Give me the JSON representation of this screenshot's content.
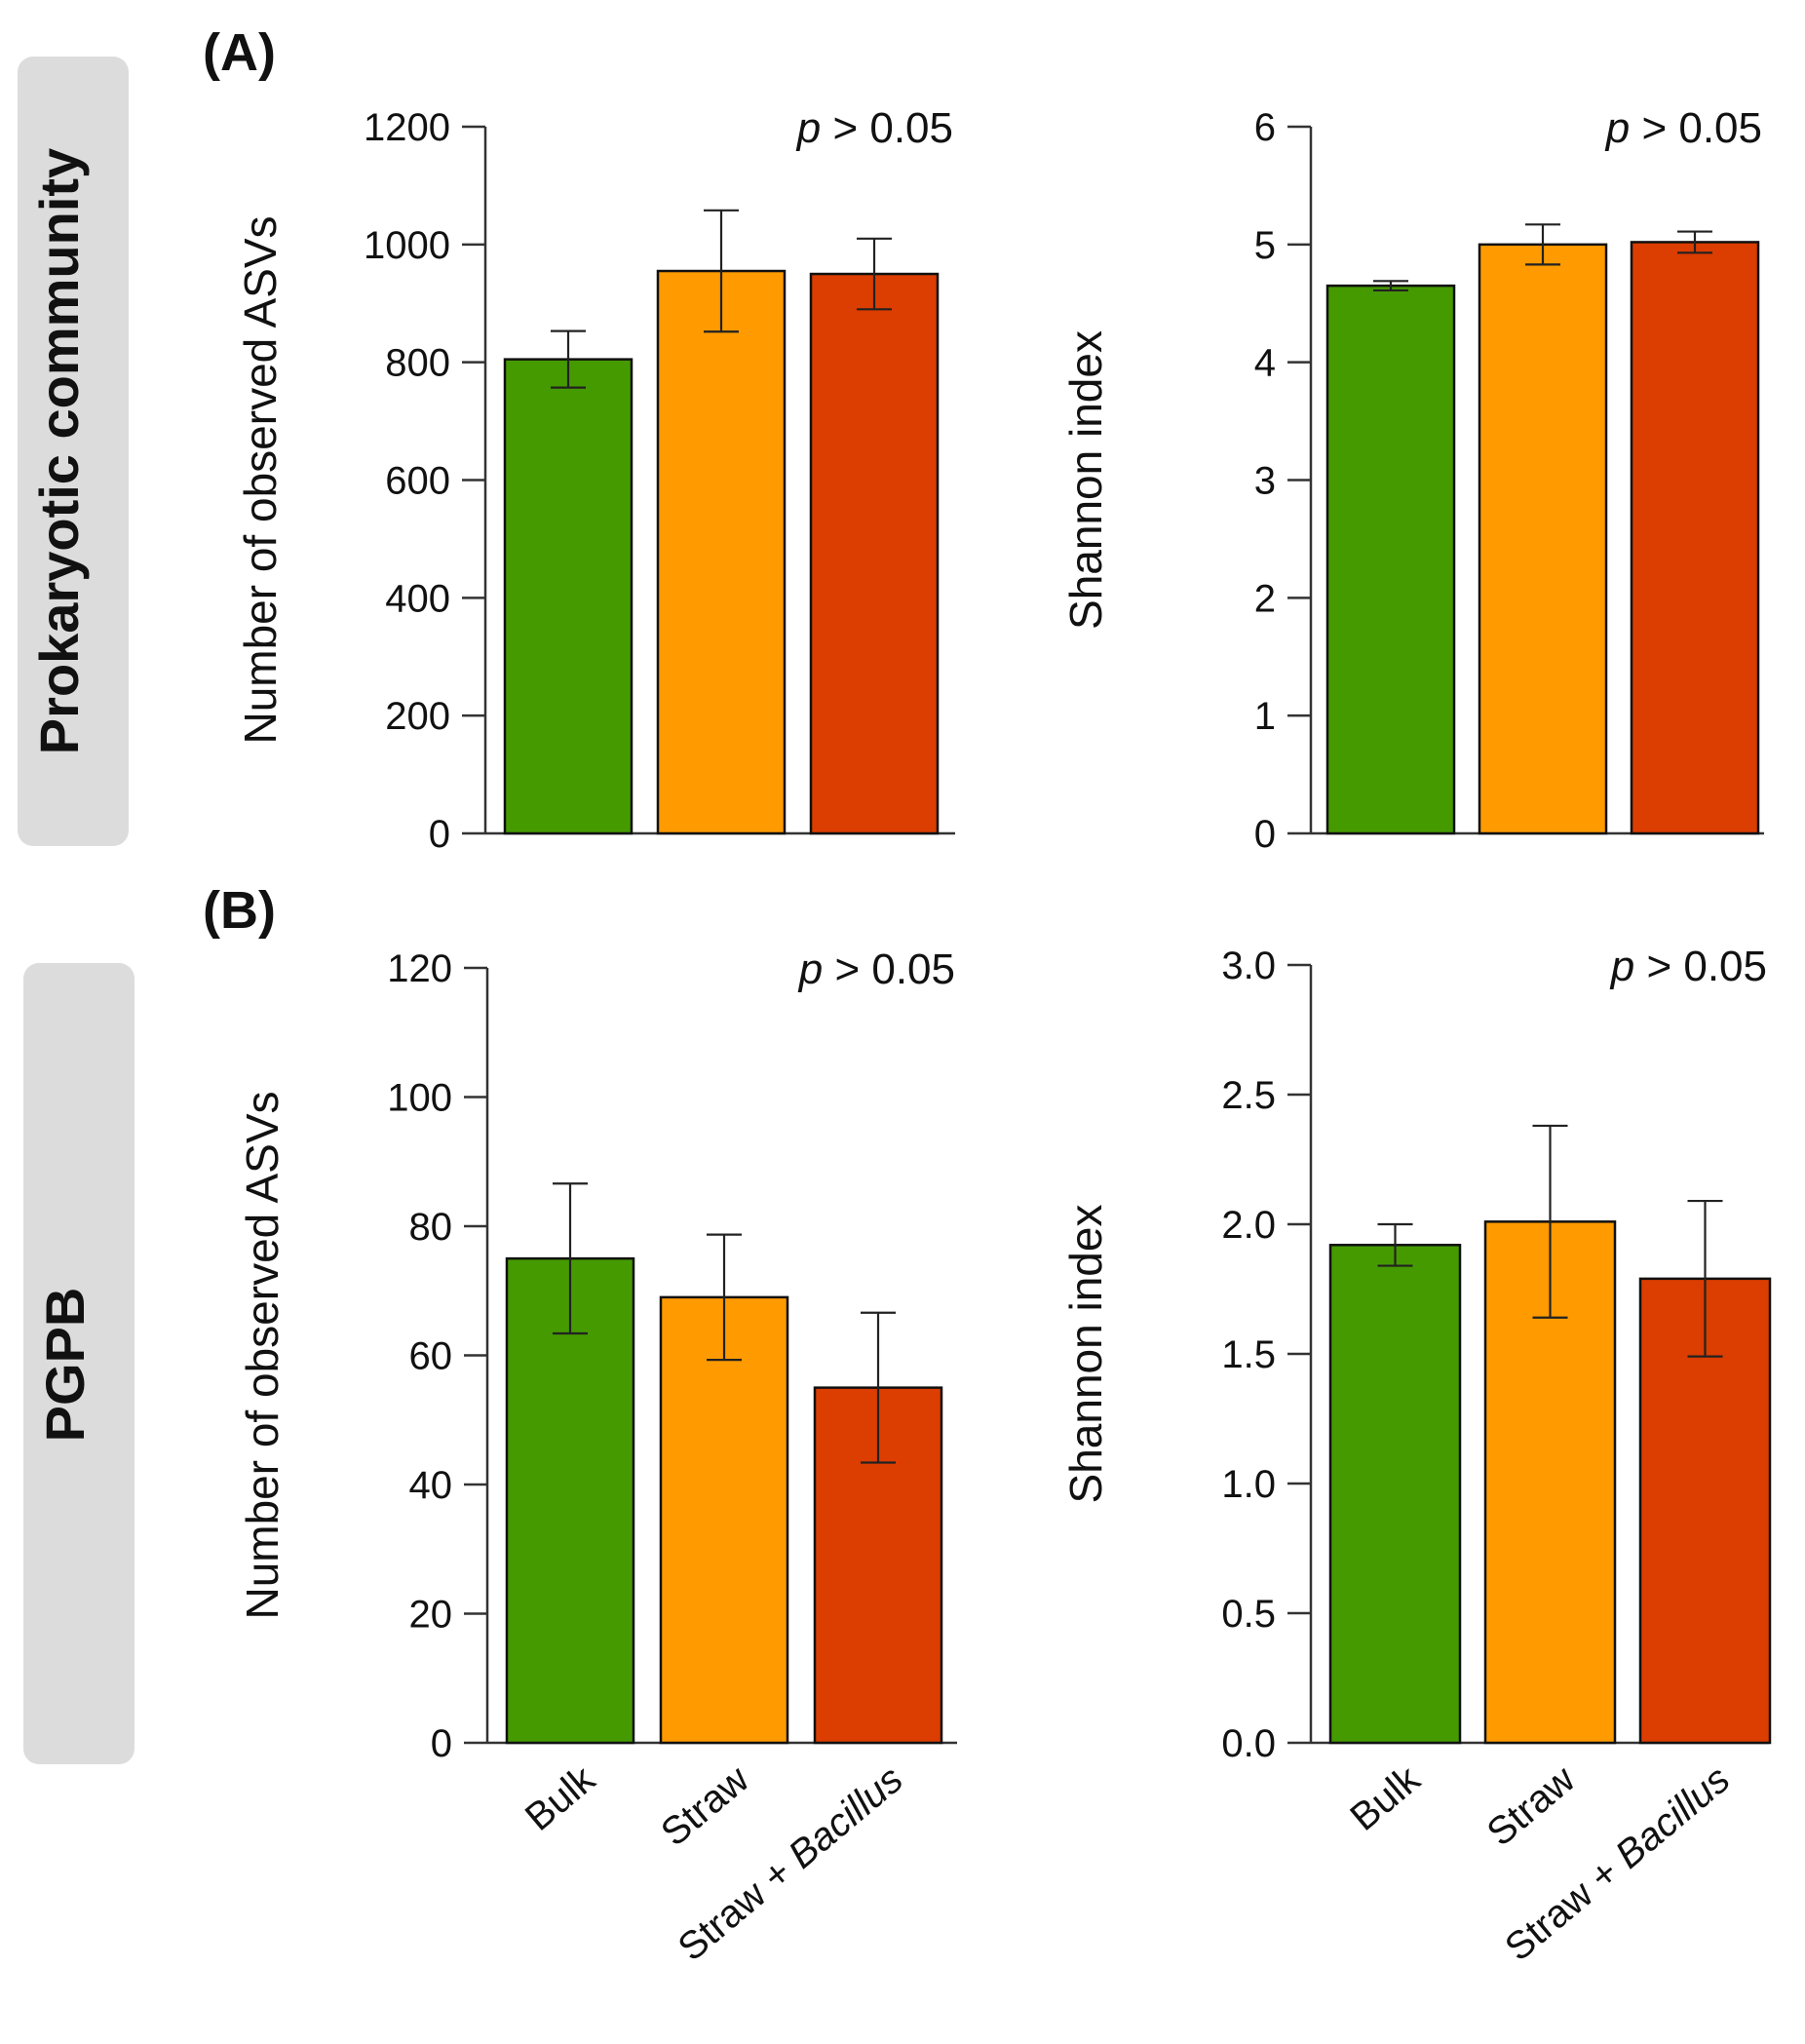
{
  "rows": [
    {
      "panel_label": "(A)",
      "side_label": "Prokaryotic community"
    },
    {
      "panel_label": "(B)",
      "side_label": "PGPB"
    }
  ],
  "colors": {
    "Bulk": "#459a00",
    "Straw": "#ff9b00",
    "Straw + Bacillus": "#dc3d00"
  },
  "category_labels": [
    {
      "prefix": "Bulk",
      "italic": ""
    },
    {
      "prefix": "Straw",
      "italic": ""
    },
    {
      "prefix": "Straw + ",
      "italic": "Bacillus"
    }
  ],
  "chart_data": [
    {
      "type": "bar",
      "row": 0,
      "col": 0,
      "title": "",
      "ylabel": "Number of observed ASVs",
      "annotation": {
        "p": "p",
        "rest": " > 0.05"
      },
      "categories": [
        "Bulk",
        "Straw",
        "Straw + Bacillus"
      ],
      "values": [
        805,
        955,
        950
      ],
      "errors": [
        48,
        103,
        60
      ],
      "ylim": [
        0,
        1200
      ],
      "yticks": [
        0,
        200,
        400,
        600,
        800,
        1000,
        1200
      ],
      "ytick_labels": [
        "0",
        "200",
        "400",
        "600",
        "800",
        "1000",
        "1200"
      ]
    },
    {
      "type": "bar",
      "row": 0,
      "col": 1,
      "title": "",
      "ylabel": "Shannon index",
      "annotation": {
        "p": "p",
        "rest": " > 0.05"
      },
      "categories": [
        "Bulk",
        "Straw",
        "Straw + Bacillus"
      ],
      "values": [
        4.65,
        5.0,
        5.02
      ],
      "errors": [
        0.04,
        0.17,
        0.09
      ],
      "ylim": [
        0,
        6
      ],
      "yticks": [
        0,
        1,
        2,
        3,
        4,
        5,
        6
      ],
      "ytick_labels": [
        "0",
        "1",
        "2",
        "3",
        "4",
        "5",
        "6"
      ]
    },
    {
      "type": "bar",
      "row": 1,
      "col": 0,
      "title": "",
      "ylabel": "Number of observed ASVs",
      "annotation": {
        "p": "p",
        "rest": " > 0.05"
      },
      "categories": [
        "Bulk",
        "Straw",
        "Straw + Bacillus"
      ],
      "values": [
        75,
        69,
        55
      ],
      "errors": [
        11.6,
        9.7,
        11.6
      ],
      "ylim": [
        0,
        120
      ],
      "yticks": [
        0,
        20,
        40,
        60,
        80,
        100,
        120
      ],
      "ytick_labels": [
        "0",
        "20",
        "40",
        "60",
        "80",
        "100",
        "120"
      ]
    },
    {
      "type": "bar",
      "row": 1,
      "col": 1,
      "title": "",
      "ylabel": "Shannon index",
      "annotation": {
        "p": "p",
        "rest": " > 0.05"
      },
      "categories": [
        "Bulk",
        "Straw",
        "Straw + Bacillus"
      ],
      "values": [
        1.92,
        2.01,
        1.79
      ],
      "errors": [
        0.08,
        0.37,
        0.3
      ],
      "ylim": [
        0,
        3.0
      ],
      "yticks": [
        0,
        0.5,
        1.0,
        1.5,
        2.0,
        2.5,
        3.0
      ],
      "ytick_labels": [
        "0.0",
        "0.5",
        "1.0",
        "1.5",
        "2.0",
        "2.5",
        "3.0"
      ]
    }
  ]
}
